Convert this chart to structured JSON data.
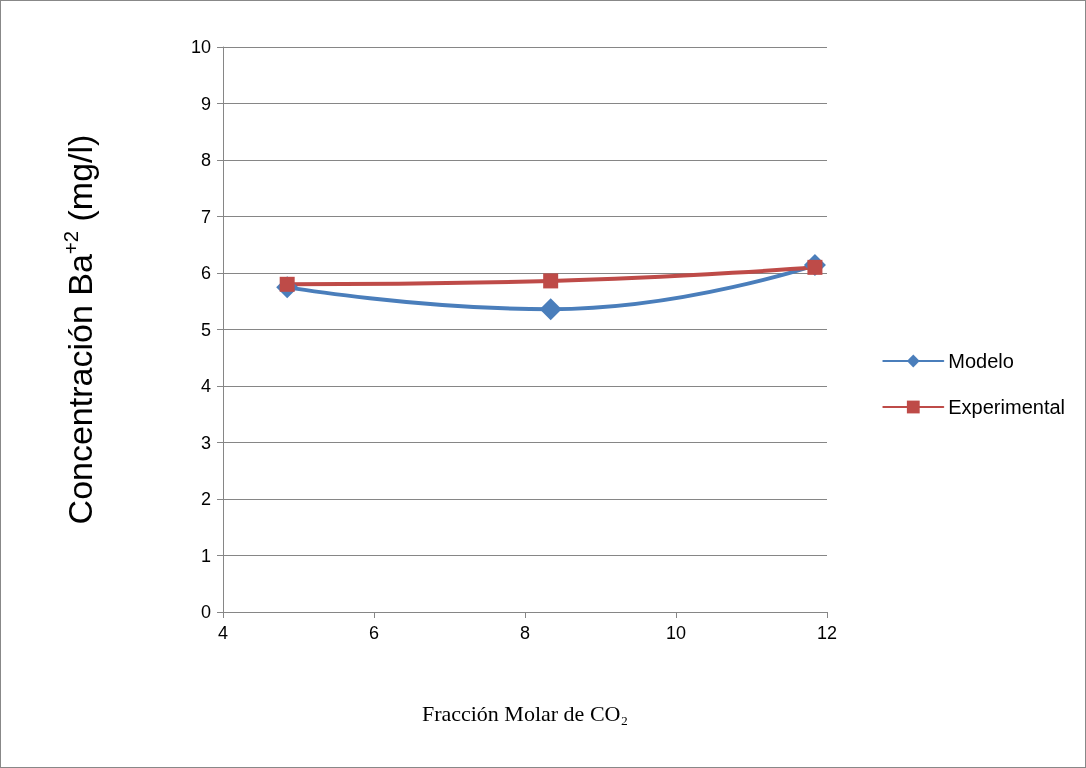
{
  "chart_data": {
    "type": "line",
    "xlabel": "Fracción Molar de CO₂",
    "ylabel": "Concentración Ba$^{+2}$ (mg/l)",
    "x": [
      4.85,
      8.34,
      11.84
    ],
    "series": [
      {
        "name": "Modelo",
        "color": "#4a7ebb",
        "marker": "diamond",
        "values": [
          5.75,
          5.36,
          6.14
        ]
      },
      {
        "name": "Experimental",
        "color": "#be4b48",
        "marker": "square",
        "values": [
          5.8,
          5.86,
          6.1
        ]
      }
    ],
    "xlim": [
      4,
      12
    ],
    "xticks": [
      4,
      6,
      8,
      10,
      12
    ],
    "ylim": [
      0,
      10
    ],
    "yticks": [
      0,
      1,
      2,
      3,
      4,
      5,
      6,
      7,
      8,
      9,
      10
    ],
    "grid": "y",
    "legend": "right"
  }
}
